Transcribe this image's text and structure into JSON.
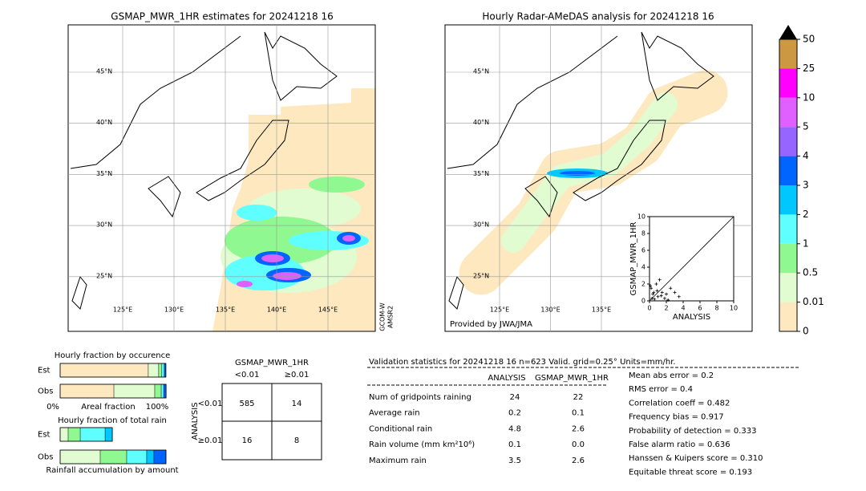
{
  "left_map": {
    "title": "GSMAP_MWR_1HR estimates for 20241218 16",
    "lat_labels": [
      "45°N",
      "40°N",
      "35°N",
      "30°N",
      "25°N"
    ],
    "lon_labels": [
      "125°E",
      "130°E",
      "135°E",
      "140°E",
      "145°E"
    ],
    "side_labels": [
      "GCOM-W",
      "AMSR2"
    ]
  },
  "right_map": {
    "title": "Hourly Radar-AMeDAS analysis for 20241218 16",
    "lat_labels": [
      "45°N",
      "40°N",
      "35°N",
      "30°N",
      "25°N"
    ],
    "lon_labels": [
      "125°E",
      "130°E",
      "135°E"
    ],
    "credit": "Provided by JWA/JMA"
  },
  "colorbar": {
    "labels": [
      0,
      0.01,
      0.5,
      1,
      2,
      3,
      4,
      5,
      10,
      25,
      50
    ],
    "colors": [
      "#fee8c0",
      "#e0fcd0",
      "#90f890",
      "#60ffff",
      "#00c8ff",
      "#0064ff",
      "#9664ff",
      "#e060ff",
      "#ff00ff",
      "#cc9940"
    ]
  },
  "chart_data": {
    "type": "scatter",
    "xlabel": "ANALYSIS",
    "ylabel": "GSMAP_MWR_1HR",
    "xlim": [
      0,
      10
    ],
    "ylim": [
      0,
      10
    ],
    "xticks": [
      0,
      2,
      4,
      6,
      8,
      10
    ],
    "yticks": [
      0,
      2,
      4,
      6,
      8,
      10
    ],
    "x": [
      0.2,
      0.5,
      0.8,
      1,
      1.5,
      2,
      2.5,
      3,
      3.5,
      1.2,
      0.3,
      0.6,
      1.8,
      2.2,
      0.1,
      0.4,
      0.9,
      1.4
    ],
    "y": [
      1.5,
      1,
      2,
      0.5,
      1,
      0.8,
      1.5,
      1,
      0.5,
      2.5,
      0.3,
      0.2,
      0.3,
      0.1,
      1.8,
      0.8,
      1.2,
      0.6
    ]
  },
  "occurrence": {
    "title": "Hourly fraction by occurence",
    "axis_labels": [
      "0%",
      "Areal fraction",
      "100%"
    ],
    "colors": [
      "#fee8c0",
      "#e0fcd0",
      "#90f890",
      "#60ffff",
      "#0064ff"
    ],
    "bars": [
      {
        "name": "Est",
        "values": [
          83.3,
          9.8,
          3,
          2.3,
          1.5
        ]
      },
      {
        "name": "Obs",
        "values": [
          50.8,
          38.6,
          6.1,
          2.3,
          2.3
        ]
      }
    ]
  },
  "total_rain": {
    "title": "Hourly fraction of total rain",
    "caption": "Rainfall accumulation by amount",
    "colors": [
      "#e0fcd0",
      "#90f890",
      "#60ffff",
      "#00c8ff",
      "#0064ff"
    ],
    "bars": [
      {
        "name": "Est",
        "values": [
          7.6,
          11.4,
          23.5,
          6.8,
          0
        ]
      },
      {
        "name": "Obs",
        "values": [
          37.9,
          25,
          18.9,
          6.8,
          11.4
        ]
      }
    ]
  },
  "contingency": {
    "title": "GSMAP_MWR_1HR",
    "col_labels": [
      "<0.01",
      "≥0.01"
    ],
    "row_title": "ANALYSIS",
    "row_labels": [
      "<0.01",
      "≥0.01"
    ],
    "cells": [
      [
        "585",
        "14"
      ],
      [
        "16",
        "8"
      ]
    ]
  },
  "validation": {
    "title": "Validation statistics for 20241218 16  n=623 Valid. grid=0.25° Units=mm/hr.",
    "columns": [
      "ANALYSIS",
      "GSMAP_MWR_1HR"
    ],
    "rows": [
      {
        "label": "Num of gridpoints raining",
        "values": [
          "24",
          "22"
        ]
      },
      {
        "label": "Average rain",
        "values": [
          "0.2",
          "0.1"
        ]
      },
      {
        "label": "Conditional rain",
        "values": [
          "4.8",
          "2.6"
        ]
      },
      {
        "label": "Rain volume (mm km²10⁶)",
        "values": [
          "0.1",
          "0.0"
        ]
      },
      {
        "label": "Maximum rain",
        "values": [
          "3.5",
          "2.6"
        ]
      }
    ],
    "scores": [
      "Mean abs error =    0.2",
      "RMS error =    0.4",
      "Correlation coeff =  0.482",
      "Frequency bias =  0.917",
      "Probability of detection =  0.333",
      "False alarm ratio =  0.636",
      "Hanssen & Kuipers score =  0.310",
      "Equitable threat score =  0.193"
    ]
  }
}
